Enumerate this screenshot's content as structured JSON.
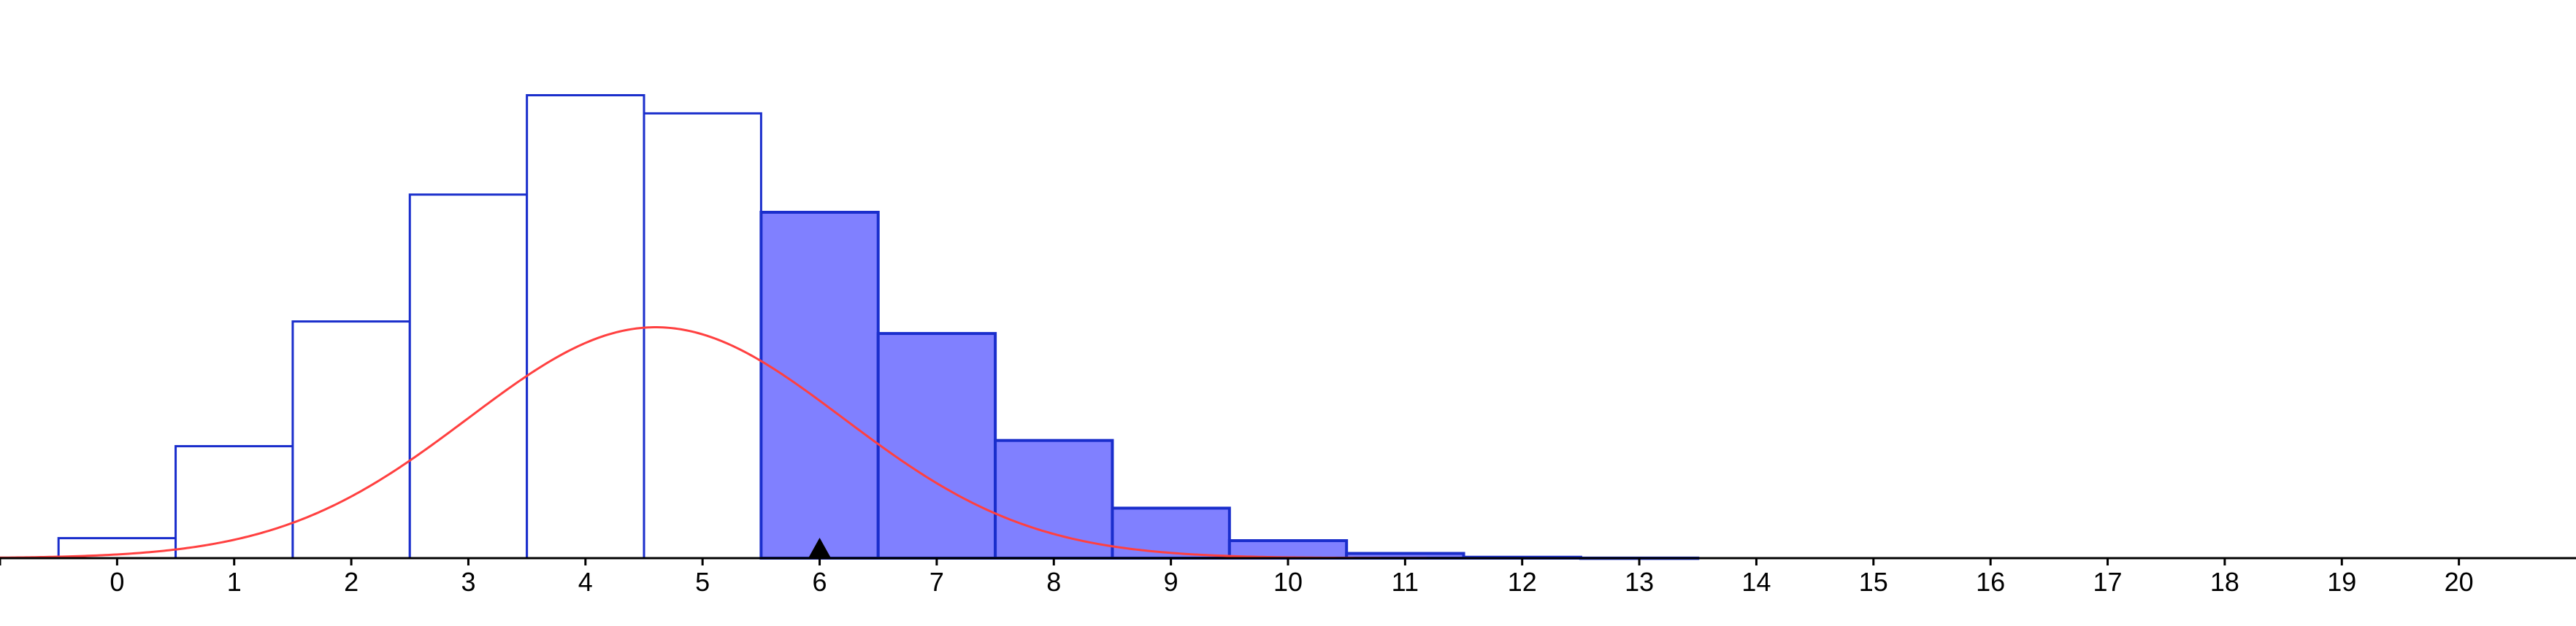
{
  "chart_data": {
    "type": "bar",
    "title": "",
    "xlabel": "",
    "ylabel": "",
    "x": [
      0,
      1,
      2,
      3,
      4,
      5,
      6,
      7,
      8,
      9,
      10,
      11,
      12,
      13,
      14,
      15,
      16,
      17,
      18,
      19,
      20
    ],
    "tick_labels": [
      "0",
      "1",
      "2",
      "3",
      "4",
      "5",
      "6",
      "7",
      "8",
      "9",
      "10",
      "11",
      "12",
      "13",
      "14",
      "15",
      "16",
      "17",
      "18",
      "19",
      "20"
    ],
    "values": [
      0.0216,
      0.1209,
      0.2556,
      0.3926,
      0.4999,
      0.4803,
      0.3735,
      0.2426,
      0.1271,
      0.054,
      0.0189,
      0.0051,
      0.001,
      0.0001,
      0.0,
      0.0,
      0.0,
      0.0,
      0.0,
      0.0,
      0.0
    ],
    "highlighted_from": 6,
    "marker_x": 6,
    "normal_curve": {
      "mean": 4.6,
      "sd": 1.6
    },
    "xlim": [
      -1,
      21
    ],
    "ylim": [
      0,
      0.52
    ],
    "grid": false,
    "legend": "none",
    "colors": {
      "bar_stroke": "#1a2ecc",
      "bar_fill_highlight": "#8080ff",
      "curve": "#ff4040",
      "axis": "#000000",
      "marker": "#000000"
    }
  }
}
